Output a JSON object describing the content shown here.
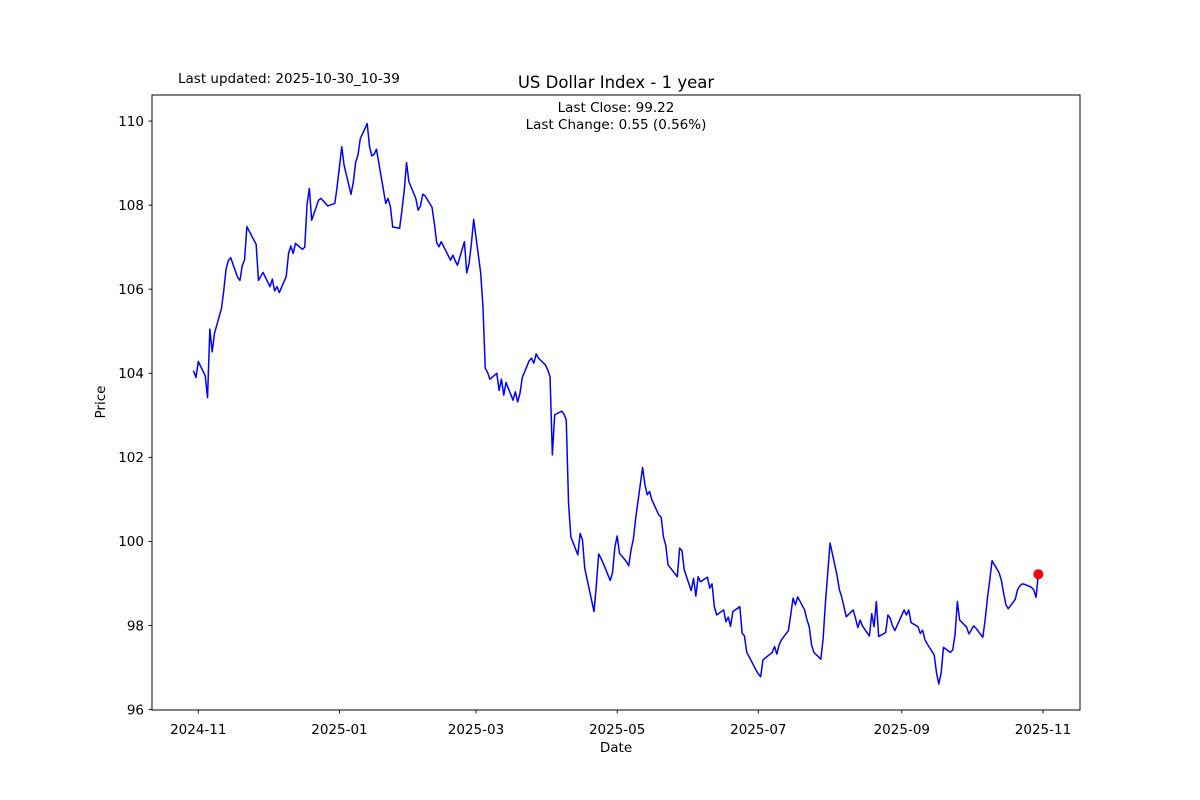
{
  "figure": {
    "last_updated": "Last updated: 2025-10-30_10-39",
    "title": "US Dollar Index - 1 year",
    "last_close_text": "Last Close: 99.22",
    "last_change_text": "Last Change: 0.55 (0.56%)"
  },
  "chart_data": {
    "type": "line",
    "title": "US Dollar Index - 1 year",
    "xlabel": "Date",
    "ylabel": "Price",
    "x_tick_labels": [
      "2024-11",
      "2025-01",
      "2025-03",
      "2025-05",
      "2025-07",
      "2025-09",
      "2025-11"
    ],
    "x_tick_dates": [
      "2024-11-01",
      "2025-01-01",
      "2025-03-01",
      "2025-05-01",
      "2025-07-01",
      "2025-09-01",
      "2025-11-01"
    ],
    "y_ticks": [
      96,
      98,
      100,
      102,
      104,
      106,
      108,
      110
    ],
    "xlim": [
      "2024-10-12",
      "2025-11-17"
    ],
    "ylim": [
      95.99,
      110.62
    ],
    "grid": false,
    "legend": null,
    "line_color": "#0000ff",
    "line_width": 1.5,
    "marker_color": "#ff0000",
    "marker_radius": 5,
    "last_close": 99.22,
    "last_change": 0.55,
    "last_change_pct": "0.56%",
    "series": [
      {
        "name": "US Dollar Index",
        "points": [
          [
            "2024-10-30",
            104.05
          ],
          [
            "2024-10-31",
            103.9
          ],
          [
            "2024-11-01",
            104.28
          ],
          [
            "2024-11-04",
            103.94
          ],
          [
            "2024-11-05",
            103.42
          ],
          [
            "2024-11-06",
            105.05
          ],
          [
            "2024-11-07",
            104.51
          ],
          [
            "2024-11-08",
            104.95
          ],
          [
            "2024-11-11",
            105.54
          ],
          [
            "2024-11-12",
            105.96
          ],
          [
            "2024-11-13",
            106.48
          ],
          [
            "2024-11-14",
            106.68
          ],
          [
            "2024-11-15",
            106.75
          ],
          [
            "2024-11-18",
            106.28
          ],
          [
            "2024-11-19",
            106.21
          ],
          [
            "2024-11-20",
            106.56
          ],
          [
            "2024-11-21",
            106.7
          ],
          [
            "2024-11-22",
            107.49
          ],
          [
            "2024-11-25",
            107.17
          ],
          [
            "2024-11-26",
            107.07
          ],
          [
            "2024-11-27",
            106.21
          ],
          [
            "2024-11-29",
            106.4
          ],
          [
            "2024-12-02",
            106.06
          ],
          [
            "2024-12-03",
            106.24
          ],
          [
            "2024-12-04",
            105.96
          ],
          [
            "2024-12-05",
            106.06
          ],
          [
            "2024-12-06",
            105.92
          ],
          [
            "2024-12-09",
            106.3
          ],
          [
            "2024-12-10",
            106.85
          ],
          [
            "2024-12-11",
            107.03
          ],
          [
            "2024-12-12",
            106.85
          ],
          [
            "2024-12-13",
            107.09
          ],
          [
            "2024-12-16",
            106.95
          ],
          [
            "2024-12-17",
            107.0
          ],
          [
            "2024-12-18",
            108.02
          ],
          [
            "2024-12-19",
            108.4
          ],
          [
            "2024-12-20",
            107.64
          ],
          [
            "2024-12-23",
            108.12
          ],
          [
            "2024-12-24",
            108.16
          ],
          [
            "2024-12-26",
            108.04
          ],
          [
            "2024-12-27",
            107.98
          ],
          [
            "2024-12-30",
            108.04
          ],
          [
            "2024-12-31",
            108.44
          ],
          [
            "2025-01-02",
            109.39
          ],
          [
            "2025-01-03",
            108.95
          ],
          [
            "2025-01-06",
            108.26
          ],
          [
            "2025-01-07",
            108.55
          ],
          [
            "2025-01-08",
            109.02
          ],
          [
            "2025-01-09",
            109.19
          ],
          [
            "2025-01-10",
            109.58
          ],
          [
            "2025-01-13",
            109.94
          ],
          [
            "2025-01-14",
            109.39
          ],
          [
            "2025-01-15",
            109.17
          ],
          [
            "2025-01-16",
            109.21
          ],
          [
            "2025-01-17",
            109.33
          ],
          [
            "2025-01-21",
            108.04
          ],
          [
            "2025-01-22",
            108.16
          ],
          [
            "2025-01-23",
            107.97
          ],
          [
            "2025-01-24",
            107.48
          ],
          [
            "2025-01-27",
            107.45
          ],
          [
            "2025-01-28",
            107.88
          ],
          [
            "2025-01-29",
            108.35
          ],
          [
            "2025-01-30",
            109.01
          ],
          [
            "2025-01-31",
            108.56
          ],
          [
            "2025-02-03",
            108.16
          ],
          [
            "2025-02-04",
            107.88
          ],
          [
            "2025-02-05",
            107.98
          ],
          [
            "2025-02-06",
            108.26
          ],
          [
            "2025-02-07",
            108.22
          ],
          [
            "2025-02-10",
            107.95
          ],
          [
            "2025-02-11",
            107.57
          ],
          [
            "2025-02-12",
            107.11
          ],
          [
            "2025-02-13",
            107.01
          ],
          [
            "2025-02-14",
            107.13
          ],
          [
            "2025-02-18",
            106.69
          ],
          [
            "2025-02-19",
            106.81
          ],
          [
            "2025-02-20",
            106.68
          ],
          [
            "2025-02-21",
            106.57
          ],
          [
            "2025-02-24",
            107.13
          ],
          [
            "2025-02-25",
            106.39
          ],
          [
            "2025-02-26",
            106.61
          ],
          [
            "2025-02-27",
            107.08
          ],
          [
            "2025-02-28",
            107.66
          ],
          [
            "2025-03-03",
            106.4
          ],
          [
            "2025-03-04",
            105.6
          ],
          [
            "2025-03-05",
            104.12
          ],
          [
            "2025-03-06",
            104.02
          ],
          [
            "2025-03-07",
            103.86
          ],
          [
            "2025-03-10",
            104.0
          ],
          [
            "2025-03-11",
            103.59
          ],
          [
            "2025-03-12",
            103.86
          ],
          [
            "2025-03-13",
            103.48
          ],
          [
            "2025-03-14",
            103.78
          ],
          [
            "2025-03-17",
            103.36
          ],
          [
            "2025-03-18",
            103.56
          ],
          [
            "2025-03-19",
            103.32
          ],
          [
            "2025-03-20",
            103.52
          ],
          [
            "2025-03-21",
            103.9
          ],
          [
            "2025-03-24",
            104.3
          ],
          [
            "2025-03-25",
            104.36
          ],
          [
            "2025-03-26",
            104.24
          ],
          [
            "2025-03-27",
            104.46
          ],
          [
            "2025-03-28",
            104.36
          ],
          [
            "2025-03-31",
            104.2
          ],
          [
            "2025-04-01",
            104.08
          ],
          [
            "2025-04-02",
            103.92
          ],
          [
            "2025-04-03",
            102.06
          ],
          [
            "2025-04-04",
            103.01
          ],
          [
            "2025-04-07",
            103.1
          ],
          [
            "2025-04-08",
            103.03
          ],
          [
            "2025-04-09",
            102.89
          ],
          [
            "2025-04-10",
            100.9
          ],
          [
            "2025-04-11",
            100.11
          ],
          [
            "2025-04-14",
            99.68
          ],
          [
            "2025-04-15",
            100.19
          ],
          [
            "2025-04-16",
            100.04
          ],
          [
            "2025-04-17",
            99.36
          ],
          [
            "2025-04-21",
            98.33
          ],
          [
            "2025-04-22",
            98.95
          ],
          [
            "2025-04-23",
            99.7
          ],
          [
            "2025-04-24",
            99.6
          ],
          [
            "2025-04-25",
            99.48
          ],
          [
            "2025-04-28",
            99.07
          ],
          [
            "2025-04-29",
            99.26
          ],
          [
            "2025-04-30",
            99.86
          ],
          [
            "2025-05-01",
            100.13
          ],
          [
            "2025-05-02",
            99.72
          ],
          [
            "2025-05-05",
            99.52
          ],
          [
            "2025-05-06",
            99.42
          ],
          [
            "2025-05-07",
            99.8
          ],
          [
            "2025-05-08",
            100.05
          ],
          [
            "2025-05-09",
            100.55
          ],
          [
            "2025-05-12",
            101.76
          ],
          [
            "2025-05-13",
            101.35
          ],
          [
            "2025-05-14",
            101.11
          ],
          [
            "2025-05-15",
            101.19
          ],
          [
            "2025-05-16",
            100.99
          ],
          [
            "2025-05-19",
            100.63
          ],
          [
            "2025-05-20",
            100.58
          ],
          [
            "2025-05-21",
            100.11
          ],
          [
            "2025-05-22",
            99.91
          ],
          [
            "2025-05-23",
            99.44
          ],
          [
            "2025-05-27",
            99.16
          ],
          [
            "2025-05-28",
            99.84
          ],
          [
            "2025-05-29",
            99.78
          ],
          [
            "2025-05-30",
            99.32
          ],
          [
            "2025-06-02",
            98.83
          ],
          [
            "2025-06-03",
            99.12
          ],
          [
            "2025-06-04",
            98.7
          ],
          [
            "2025-06-05",
            99.16
          ],
          [
            "2025-06-06",
            99.04
          ],
          [
            "2025-06-09",
            99.15
          ],
          [
            "2025-06-10",
            98.89
          ],
          [
            "2025-06-11",
            98.99
          ],
          [
            "2025-06-12",
            98.45
          ],
          [
            "2025-06-13",
            98.25
          ],
          [
            "2025-06-16",
            98.37
          ],
          [
            "2025-06-17",
            98.09
          ],
          [
            "2025-06-18",
            98.2
          ],
          [
            "2025-06-19",
            97.98
          ],
          [
            "2025-06-20",
            98.33
          ],
          [
            "2025-06-23",
            98.45
          ],
          [
            "2025-06-24",
            97.82
          ],
          [
            "2025-06-25",
            97.75
          ],
          [
            "2025-06-26",
            97.36
          ],
          [
            "2025-06-27",
            97.26
          ],
          [
            "2025-06-30",
            96.94
          ],
          [
            "2025-07-01",
            96.85
          ],
          [
            "2025-07-02",
            96.78
          ],
          [
            "2025-07-03",
            97.18
          ],
          [
            "2025-07-07",
            97.36
          ],
          [
            "2025-07-08",
            97.5
          ],
          [
            "2025-07-09",
            97.32
          ],
          [
            "2025-07-10",
            97.54
          ],
          [
            "2025-07-11",
            97.66
          ],
          [
            "2025-07-14",
            97.88
          ],
          [
            "2025-07-15",
            98.25
          ],
          [
            "2025-07-16",
            98.65
          ],
          [
            "2025-07-17",
            98.49
          ],
          [
            "2025-07-18",
            98.68
          ],
          [
            "2025-07-21",
            98.37
          ],
          [
            "2025-07-22",
            98.14
          ],
          [
            "2025-07-23",
            97.97
          ],
          [
            "2025-07-24",
            97.54
          ],
          [
            "2025-07-25",
            97.36
          ],
          [
            "2025-07-28",
            97.2
          ],
          [
            "2025-07-29",
            97.68
          ],
          [
            "2025-07-30",
            98.55
          ],
          [
            "2025-07-31",
            99.25
          ],
          [
            "2025-08-01",
            99.96
          ],
          [
            "2025-08-04",
            99.2
          ],
          [
            "2025-08-05",
            98.86
          ],
          [
            "2025-08-06",
            98.68
          ],
          [
            "2025-08-07",
            98.45
          ],
          [
            "2025-08-08",
            98.21
          ],
          [
            "2025-08-11",
            98.37
          ],
          [
            "2025-08-12",
            98.17
          ],
          [
            "2025-08-13",
            97.95
          ],
          [
            "2025-08-14",
            98.13
          ],
          [
            "2025-08-15",
            97.99
          ],
          [
            "2025-08-18",
            97.75
          ],
          [
            "2025-08-19",
            98.28
          ],
          [
            "2025-08-20",
            97.97
          ],
          [
            "2025-08-21",
            98.57
          ],
          [
            "2025-08-22",
            97.74
          ],
          [
            "2025-08-25",
            97.83
          ],
          [
            "2025-08-26",
            98.25
          ],
          [
            "2025-08-27",
            98.17
          ],
          [
            "2025-08-28",
            97.99
          ],
          [
            "2025-08-29",
            97.88
          ],
          [
            "2025-09-02",
            98.37
          ],
          [
            "2025-09-03",
            98.25
          ],
          [
            "2025-09-04",
            98.37
          ],
          [
            "2025-09-05",
            98.07
          ],
          [
            "2025-09-08",
            97.97
          ],
          [
            "2025-09-09",
            97.81
          ],
          [
            "2025-09-10",
            97.89
          ],
          [
            "2025-09-11",
            97.66
          ],
          [
            "2025-09-12",
            97.56
          ],
          [
            "2025-09-15",
            97.3
          ],
          [
            "2025-09-16",
            96.87
          ],
          [
            "2025-09-17",
            96.61
          ],
          [
            "2025-09-18",
            96.87
          ],
          [
            "2025-09-19",
            97.48
          ],
          [
            "2025-09-22",
            97.36
          ],
          [
            "2025-09-23",
            97.42
          ],
          [
            "2025-09-24",
            97.78
          ],
          [
            "2025-09-25",
            98.57
          ],
          [
            "2025-09-26",
            98.13
          ],
          [
            "2025-09-29",
            97.96
          ],
          [
            "2025-09-30",
            97.8
          ],
          [
            "2025-10-01",
            97.89
          ],
          [
            "2025-10-02",
            97.99
          ],
          [
            "2025-10-03",
            97.94
          ],
          [
            "2025-10-06",
            97.72
          ],
          [
            "2025-10-07",
            98.13
          ],
          [
            "2025-10-08",
            98.65
          ],
          [
            "2025-10-09",
            99.08
          ],
          [
            "2025-10-10",
            99.54
          ],
          [
            "2025-10-13",
            99.26
          ],
          [
            "2025-10-14",
            99.08
          ],
          [
            "2025-10-15",
            98.77
          ],
          [
            "2025-10-16",
            98.49
          ],
          [
            "2025-10-17",
            98.4
          ],
          [
            "2025-10-20",
            98.62
          ],
          [
            "2025-10-21",
            98.85
          ],
          [
            "2025-10-22",
            98.94
          ],
          [
            "2025-10-23",
            98.99
          ],
          [
            "2025-10-24",
            98.98
          ],
          [
            "2025-10-27",
            98.91
          ],
          [
            "2025-10-28",
            98.85
          ],
          [
            "2025-10-29",
            98.67
          ],
          [
            "2025-10-30",
            99.22
          ]
        ]
      }
    ]
  }
}
